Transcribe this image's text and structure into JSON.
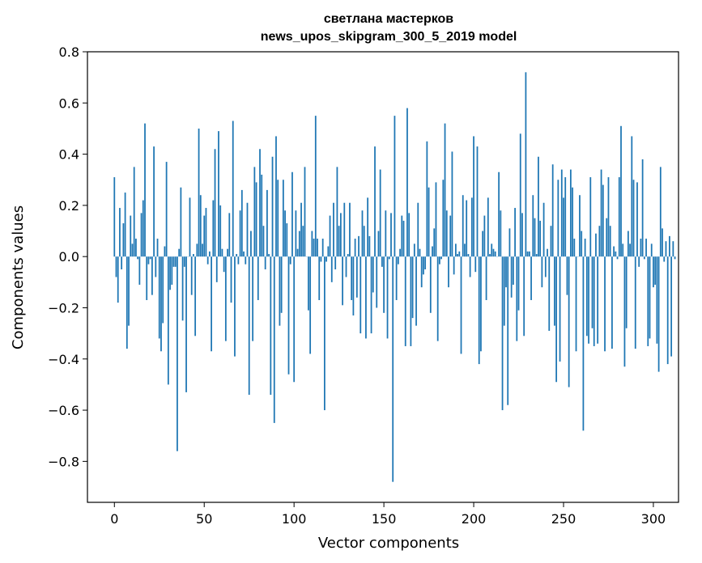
{
  "chart_data": {
    "type": "bar",
    "title": "светлана мастерков",
    "subtitle": "news_upos_skipgram_300_5_2019 model",
    "xlabel": "Vector components",
    "ylabel": "Components values",
    "xlim": [
      -15,
      314
    ],
    "ylim": [
      -0.96,
      0.8
    ],
    "x_ticks": [
      0,
      50,
      100,
      150,
      200,
      250,
      300
    ],
    "x_tick_labels": [
      "0",
      "50",
      "100",
      "150",
      "200",
      "250",
      "300"
    ],
    "y_ticks": [
      0.8,
      0.6,
      0.4,
      0.2,
      0.0,
      -0.2,
      -0.4,
      -0.6,
      -0.8
    ],
    "y_tick_labels": [
      "0.8",
      "0.6",
      "0.4",
      "0.2",
      "0.0",
      "−0.2",
      "−0.4",
      "−0.6",
      "−0.8"
    ],
    "grid": false,
    "bar_color": "#1f77b4",
    "values": [
      0.31,
      -0.08,
      -0.18,
      0.19,
      -0.05,
      0.13,
      0.25,
      -0.36,
      -0.27,
      0.16,
      0.05,
      0.35,
      0.07,
      -0.01,
      -0.11,
      0.17,
      0.22,
      0.52,
      -0.17,
      -0.03,
      -0.01,
      -0.15,
      0.43,
      -0.08,
      0.07,
      -0.32,
      -0.37,
      -0.26,
      0.04,
      0.37,
      -0.5,
      -0.13,
      -0.11,
      -0.04,
      -0.04,
      -0.76,
      0.03,
      0.27,
      -0.25,
      -0.04,
      -0.53,
      0.0,
      0.23,
      -0.15,
      0.01,
      -0.31,
      0.05,
      0.5,
      0.24,
      0.05,
      0.16,
      0.19,
      -0.03,
      0.02,
      -0.37,
      0.22,
      0.42,
      -0.1,
      0.49,
      0.2,
      0.03,
      -0.06,
      -0.33,
      0.03,
      0.17,
      -0.18,
      0.53,
      -0.39,
      0.01,
      -0.03,
      0.18,
      0.26,
      0.02,
      -0.03,
      0.21,
      -0.54,
      0.1,
      -0.33,
      0.35,
      0.29,
      -0.17,
      0.42,
      0.32,
      0.12,
      -0.05,
      0.26,
      0.01,
      -0.54,
      0.39,
      -0.65,
      0.47,
      0.3,
      -0.27,
      -0.22,
      0.3,
      0.18,
      0.13,
      -0.46,
      -0.03,
      0.33,
      -0.49,
      0.18,
      0.03,
      0.1,
      0.21,
      0.12,
      0.35,
      0.0,
      -0.21,
      -0.38,
      0.1,
      0.07,
      0.55,
      0.07,
      -0.17,
      -0.02,
      0.07,
      -0.6,
      -0.02,
      0.04,
      0.16,
      -0.1,
      0.21,
      -0.05,
      0.35,
      0.12,
      0.17,
      -0.19,
      0.21,
      -0.08,
      0.01,
      0.21,
      -0.17,
      -0.23,
      0.07,
      -0.16,
      0.08,
      -0.3,
      0.18,
      0.12,
      -0.32,
      0.23,
      0.08,
      -0.3,
      -0.14,
      0.43,
      -0.2,
      0.1,
      0.34,
      -0.04,
      -0.22,
      0.18,
      -0.32,
      -0.01,
      0.17,
      -0.88,
      0.55,
      -0.17,
      -0.03,
      0.03,
      0.16,
      0.14,
      -0.35,
      0.58,
      0.17,
      -0.35,
      -0.24,
      0.05,
      -0.27,
      0.21,
      0.03,
      -0.12,
      -0.07,
      -0.05,
      0.45,
      0.27,
      -0.22,
      0.04,
      0.11,
      0.29,
      -0.33,
      -0.03,
      -0.01,
      0.3,
      0.52,
      0.18,
      -0.12,
      0.16,
      0.41,
      -0.07,
      0.05,
      0.01,
      0.02,
      -0.38,
      0.24,
      0.05,
      0.22,
      0.01,
      -0.08,
      0.23,
      0.47,
      -0.06,
      0.43,
      -0.42,
      -0.37,
      0.1,
      0.16,
      -0.17,
      0.23,
      0.01,
      0.05,
      0.03,
      0.02,
      0.0,
      0.33,
      0.18,
      -0.6,
      -0.27,
      -0.12,
      -0.58,
      0.11,
      -0.16,
      -0.11,
      0.19,
      -0.33,
      -0.21,
      0.48,
      0.17,
      -0.31,
      0.72,
      0.02,
      0.02,
      -0.17,
      0.24,
      0.15,
      0.01,
      0.39,
      0.14,
      -0.12,
      0.21,
      -0.08,
      0.03,
      -0.29,
      0.12,
      0.36,
      -0.27,
      -0.49,
      0.3,
      -0.41,
      0.34,
      0.23,
      0.31,
      -0.15,
      -0.51,
      0.34,
      0.27,
      0.07,
      -0.37,
      0.0,
      0.24,
      0.1,
      -0.68,
      0.07,
      -0.31,
      -0.34,
      0.31,
      -0.28,
      -0.35,
      0.09,
      -0.34,
      0.12,
      0.34,
      0.28,
      -0.37,
      0.15,
      0.31,
      0.12,
      -0.36,
      0.04,
      0.02,
      -0.01,
      0.31,
      0.51,
      0.05,
      -0.43,
      -0.28,
      0.1,
      0.05,
      0.47,
      0.3,
      -0.36,
      0.29,
      -0.04,
      0.07,
      0.38,
      -0.01,
      0.07,
      -0.35,
      -0.32,
      0.05,
      -0.12,
      -0.11,
      -0.34,
      -0.45,
      0.35,
      0.11,
      -0.02,
      0.06,
      -0.42,
      0.08,
      -0.39,
      0.06,
      -0.01
    ]
  }
}
